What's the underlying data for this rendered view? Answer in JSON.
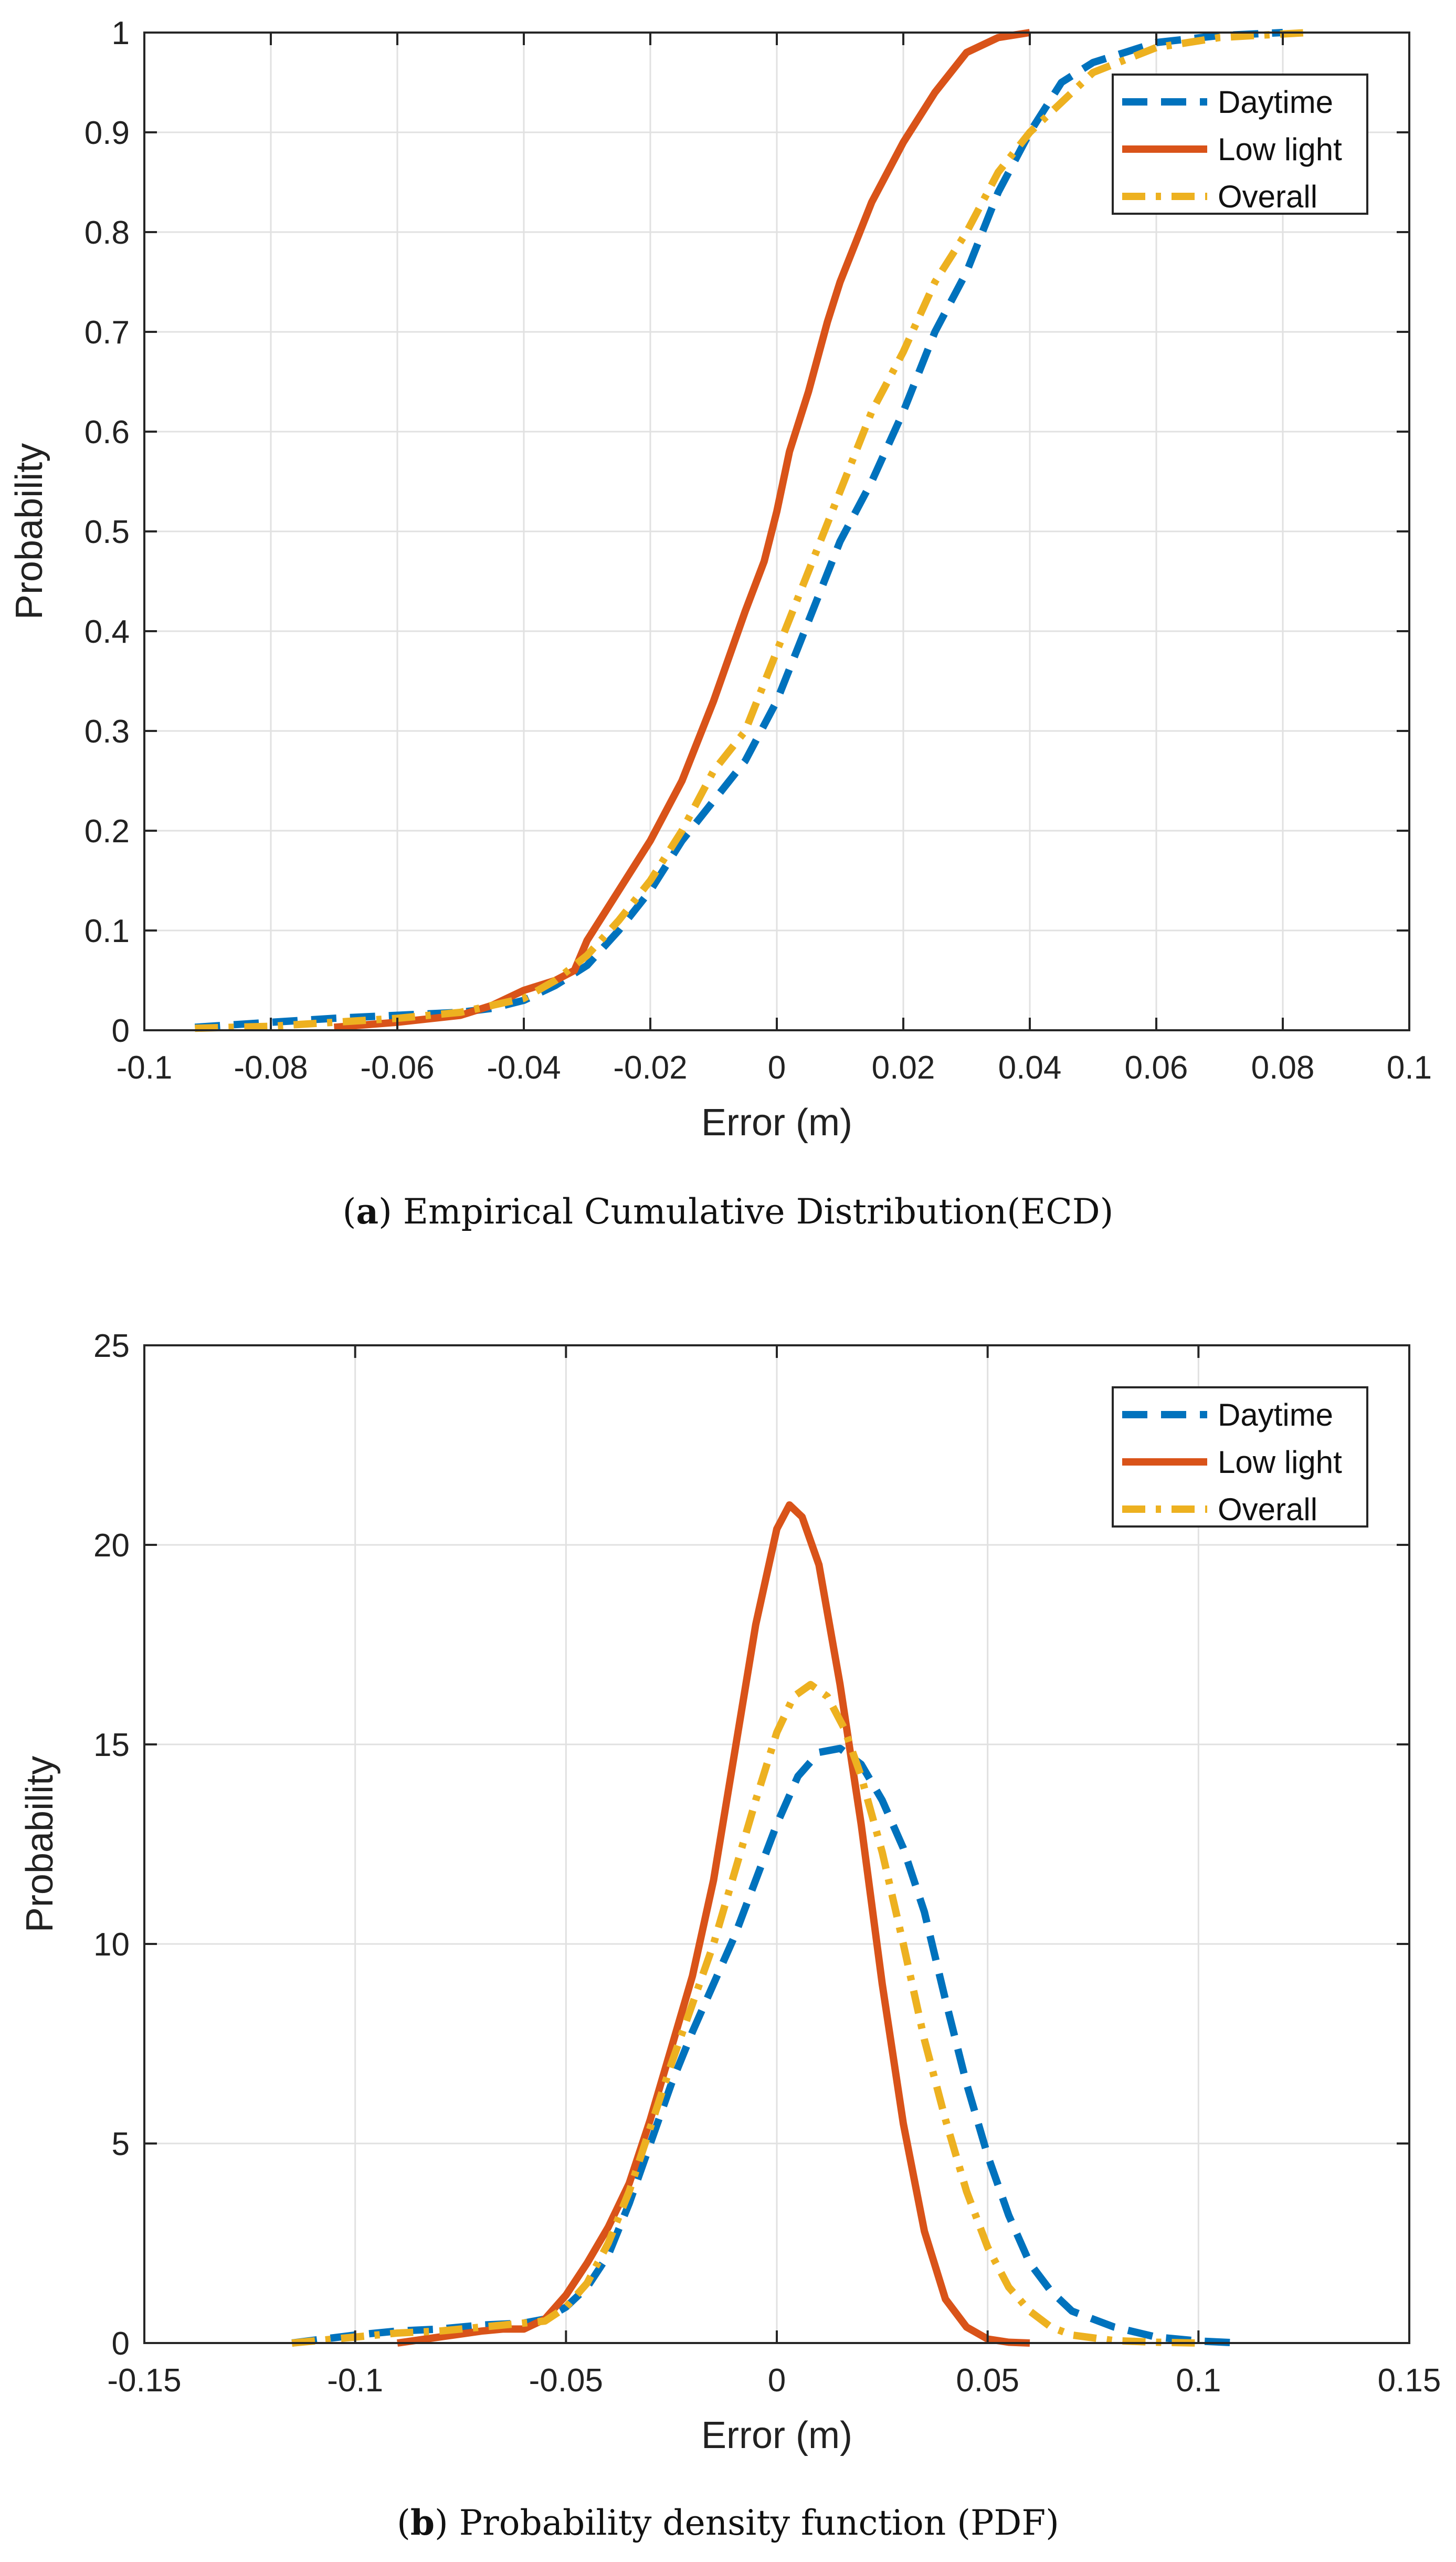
{
  "chart_data": [
    {
      "id": "a",
      "type": "line",
      "caption_letter": "a",
      "caption": "Empirical Cumulative Distribution(ECD)",
      "xlabel": "Error (m)",
      "ylabel": "Probability",
      "xlim": [
        -0.1,
        0.1
      ],
      "ylim": [
        0,
        1
      ],
      "xticks": [
        -0.1,
        -0.08,
        -0.06,
        -0.04,
        -0.02,
        0,
        0.02,
        0.04,
        0.06,
        0.08,
        0.1
      ],
      "xtick_labels": [
        "-0.1",
        "-0.08",
        "-0.06",
        "-0.04",
        "-0.02",
        "0",
        "0.02",
        "0.04",
        "0.06",
        "0.08",
        "0.1"
      ],
      "yticks": [
        0,
        0.1,
        0.2,
        0.3,
        0.4,
        0.5,
        0.6,
        0.7,
        0.8,
        0.9,
        1
      ],
      "ytick_labels": [
        "0",
        "0.1",
        "0.2",
        "0.3",
        "0.4",
        "0.5",
        "0.6",
        "0.7",
        "0.8",
        "0.9",
        "1"
      ],
      "grid": true,
      "legend_position": "top-right",
      "series": [
        {
          "name": "Daytime",
          "color": "#0072BD",
          "style": "dashed",
          "x": [
            -0.092,
            -0.08,
            -0.07,
            -0.06,
            -0.05,
            -0.045,
            -0.04,
            -0.035,
            -0.03,
            -0.025,
            -0.02,
            -0.015,
            -0.01,
            -0.005,
            0,
            0.005,
            0.01,
            0.015,
            0.02,
            0.025,
            0.03,
            0.035,
            0.04,
            0.045,
            0.05,
            0.055,
            0.06,
            0.07,
            0.08
          ],
          "y": [
            0.003,
            0.008,
            0.012,
            0.015,
            0.018,
            0.022,
            0.03,
            0.045,
            0.065,
            0.1,
            0.14,
            0.19,
            0.23,
            0.27,
            0.33,
            0.41,
            0.49,
            0.55,
            0.62,
            0.7,
            0.76,
            0.84,
            0.9,
            0.95,
            0.97,
            0.98,
            0.99,
            0.997,
            1.0
          ]
        },
        {
          "name": "Low light",
          "color": "#D95319",
          "style": "solid",
          "x": [
            -0.07,
            -0.06,
            -0.05,
            -0.045,
            -0.04,
            -0.035,
            -0.032,
            -0.03,
            -0.025,
            -0.02,
            -0.015,
            -0.01,
            -0.005,
            -0.002,
            0,
            0.002,
            0.005,
            0.008,
            0.01,
            0.015,
            0.02,
            0.025,
            0.03,
            0.035,
            0.04
          ],
          "y": [
            0.003,
            0.008,
            0.015,
            0.025,
            0.04,
            0.05,
            0.06,
            0.09,
            0.14,
            0.19,
            0.25,
            0.33,
            0.42,
            0.47,
            0.52,
            0.58,
            0.64,
            0.71,
            0.75,
            0.83,
            0.89,
            0.94,
            0.98,
            0.995,
            1.0
          ]
        },
        {
          "name": "Overall",
          "color": "#EDB120",
          "style": "dashdot",
          "x": [
            -0.092,
            -0.08,
            -0.07,
            -0.06,
            -0.05,
            -0.04,
            -0.035,
            -0.03,
            -0.025,
            -0.02,
            -0.015,
            -0.01,
            -0.005,
            0,
            0.005,
            0.01,
            0.015,
            0.02,
            0.025,
            0.03,
            0.035,
            0.04,
            0.045,
            0.05,
            0.06,
            0.07,
            0.084
          ],
          "y": [
            0.002,
            0.004,
            0.008,
            0.012,
            0.018,
            0.032,
            0.05,
            0.075,
            0.11,
            0.15,
            0.2,
            0.26,
            0.3,
            0.38,
            0.46,
            0.54,
            0.62,
            0.68,
            0.75,
            0.8,
            0.86,
            0.9,
            0.93,
            0.96,
            0.985,
            0.995,
            1.0
          ]
        }
      ]
    },
    {
      "id": "b",
      "type": "line",
      "caption_letter": "b",
      "caption": "Probability density function (PDF)",
      "xlabel": "Error (m)",
      "ylabel": "Probability",
      "xlim": [
        -0.15,
        0.15
      ],
      "ylim": [
        0,
        25
      ],
      "xticks": [
        -0.15,
        -0.1,
        -0.05,
        0,
        0.05,
        0.1,
        0.15
      ],
      "xtick_labels": [
        "-0.15",
        "-0.1",
        "-0.05",
        "0",
        "0.05",
        "0.1",
        "0.15"
      ],
      "yticks": [
        0,
        5,
        10,
        15,
        20,
        25
      ],
      "ytick_labels": [
        "0",
        "5",
        "10",
        "15",
        "20",
        "25"
      ],
      "grid": true,
      "legend_position": "top-right",
      "series": [
        {
          "name": "Daytime",
          "color": "#0072BD",
          "style": "dashed",
          "x": [
            -0.115,
            -0.1,
            -0.09,
            -0.08,
            -0.07,
            -0.06,
            -0.055,
            -0.05,
            -0.045,
            -0.04,
            -0.035,
            -0.03,
            -0.025,
            -0.02,
            -0.015,
            -0.01,
            -0.005,
            0,
            0.005,
            0.01,
            0.015,
            0.02,
            0.025,
            0.03,
            0.035,
            0.04,
            0.045,
            0.05,
            0.055,
            0.06,
            0.065,
            0.07,
            0.08,
            0.09,
            0.1,
            0.11
          ],
          "y": [
            0.0,
            0.2,
            0.3,
            0.35,
            0.45,
            0.5,
            0.6,
            0.9,
            1.4,
            2.2,
            3.5,
            5.0,
            6.5,
            7.8,
            9.0,
            10.2,
            11.6,
            13.0,
            14.2,
            14.8,
            14.9,
            14.5,
            13.6,
            12.4,
            10.8,
            8.6,
            6.5,
            4.7,
            3.2,
            2.0,
            1.3,
            0.8,
            0.4,
            0.15,
            0.05,
            0.0
          ]
        },
        {
          "name": "Low light",
          "color": "#D95319",
          "style": "solid",
          "x": [
            -0.09,
            -0.08,
            -0.07,
            -0.065,
            -0.06,
            -0.055,
            -0.05,
            -0.045,
            -0.04,
            -0.035,
            -0.03,
            -0.025,
            -0.02,
            -0.015,
            -0.01,
            -0.005,
            0,
            0.003,
            0.006,
            0.01,
            0.015,
            0.02,
            0.025,
            0.03,
            0.035,
            0.04,
            0.045,
            0.05,
            0.055,
            0.06
          ],
          "y": [
            0.0,
            0.15,
            0.3,
            0.35,
            0.35,
            0.6,
            1.2,
            2.0,
            2.9,
            4.0,
            5.6,
            7.4,
            9.2,
            11.6,
            14.8,
            18.0,
            20.4,
            21.0,
            20.7,
            19.5,
            16.5,
            13.0,
            9.0,
            5.5,
            2.8,
            1.1,
            0.4,
            0.1,
            0.02,
            0.0
          ]
        },
        {
          "name": "Overall",
          "color": "#EDB120",
          "style": "dashdot",
          "x": [
            -0.115,
            -0.1,
            -0.09,
            -0.08,
            -0.07,
            -0.065,
            -0.06,
            -0.055,
            -0.05,
            -0.045,
            -0.04,
            -0.035,
            -0.03,
            -0.025,
            -0.02,
            -0.015,
            -0.01,
            -0.005,
            0,
            0.004,
            0.008,
            0.012,
            0.016,
            0.02,
            0.025,
            0.03,
            0.035,
            0.04,
            0.045,
            0.05,
            0.055,
            0.06,
            0.065,
            0.07,
            0.08,
            0.09,
            0.1
          ],
          "y": [
            0.0,
            0.15,
            0.25,
            0.3,
            0.4,
            0.45,
            0.5,
            0.55,
            0.9,
            1.5,
            2.5,
            3.8,
            5.4,
            7.0,
            8.5,
            10.0,
            11.8,
            13.6,
            15.3,
            16.2,
            16.5,
            16.2,
            15.4,
            14.2,
            12.3,
            10.0,
            7.6,
            5.6,
            3.8,
            2.4,
            1.4,
            0.8,
            0.4,
            0.2,
            0.06,
            0.02,
            0.0
          ]
        }
      ]
    }
  ]
}
